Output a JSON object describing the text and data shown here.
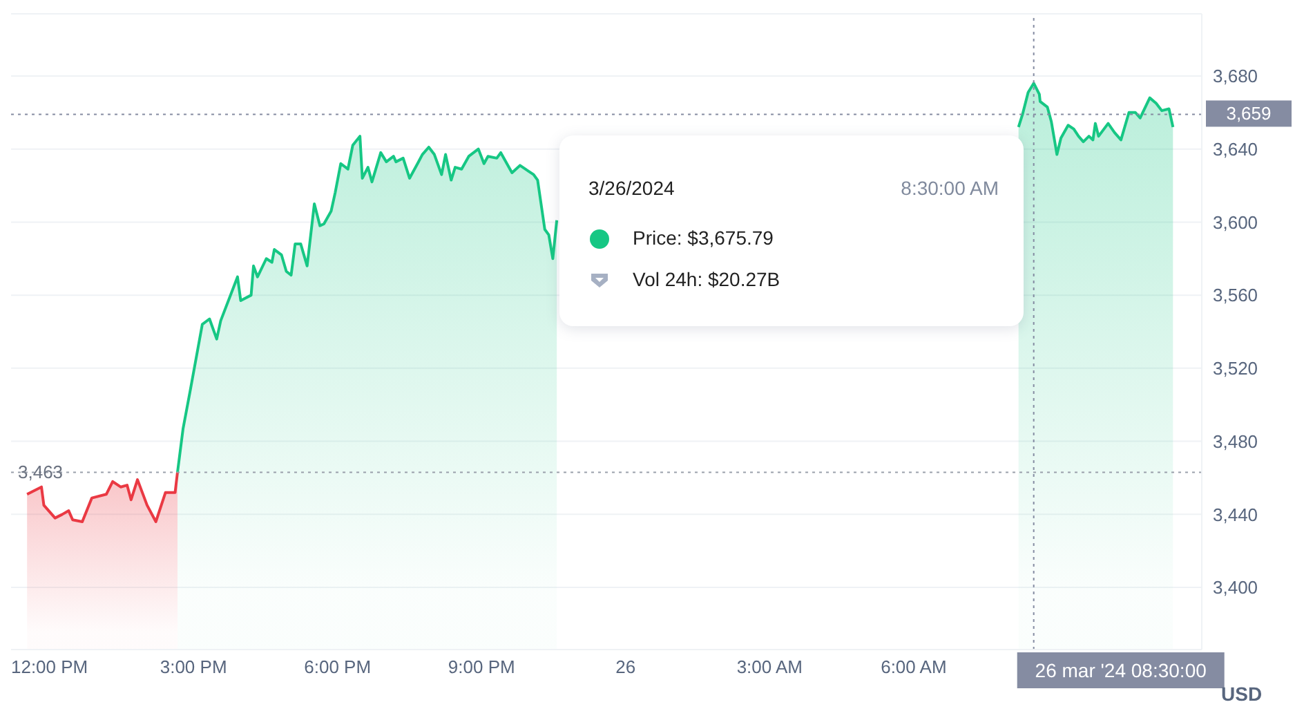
{
  "chart_data": {
    "type": "area",
    "ylabel": "USD",
    "xlim": [
      "2024-03-25T11:12",
      "2024-03-26T12:00"
    ],
    "ylim": [
      3366,
      3714
    ],
    "xticks": [
      {
        "value": "2024-03-25T12:00",
        "label": "12:00 PM"
      },
      {
        "value": "2024-03-25T15:00",
        "label": "3:00 PM"
      },
      {
        "value": "2024-03-25T18:00",
        "label": "6:00 PM"
      },
      {
        "value": "2024-03-25T21:00",
        "label": "9:00 PM"
      },
      {
        "value": "2024-03-26T00:00",
        "label": "26"
      },
      {
        "value": "2024-03-26T03:00",
        "label": "3:00 AM"
      },
      {
        "value": "2024-03-26T06:00",
        "label": "6:00 AM"
      }
    ],
    "yticks": [
      {
        "value": 3400,
        "label": "3,400"
      },
      {
        "value": 3440,
        "label": "3,440"
      },
      {
        "value": 3480,
        "label": "3,480"
      },
      {
        "value": 3520,
        "label": "3,520"
      },
      {
        "value": 3560,
        "label": "3,560"
      },
      {
        "value": 3600,
        "label": "3,600"
      },
      {
        "value": 3640,
        "label": "3,640"
      },
      {
        "value": 3680,
        "label": "3,680"
      }
    ],
    "grid": "y",
    "marker": "none",
    "line_style": "solid",
    "series": [
      {
        "color": "#ea3943",
        "x": [
          "2024-03-25T11:32",
          "2024-03-25T11:50",
          "2024-03-25T11:53",
          "2024-03-25T12:07",
          "2024-03-25T12:16",
          "2024-03-25T12:24",
          "2024-03-25T12:29",
          "2024-03-25T12:41",
          "2024-03-25T12:53",
          "2024-03-25T13:11",
          "2024-03-25T13:19",
          "2024-03-25T13:29",
          "2024-03-25T13:37",
          "2024-03-25T13:42",
          "2024-03-25T13:50",
          "2024-03-25T14:02",
          "2024-03-25T14:13",
          "2024-03-25T14:25",
          "2024-03-25T14:37",
          "2024-03-25T14:40"
        ],
        "values": [
          3451,
          3455,
          3445,
          3438,
          3440,
          3442,
          3437,
          3436,
          3449,
          3451,
          3458,
          3455,
          3456,
          3448,
          3459,
          3445,
          3436,
          3452,
          3452,
          3463
        ]
      },
      {
        "color": "#16c784",
        "x": [
          "2024-03-25T14:40",
          "2024-03-25T14:47",
          "2024-03-25T14:56",
          "2024-03-25T15:11",
          "2024-03-25T15:20",
          "2024-03-25T15:29",
          "2024-03-25T15:34",
          "2024-03-25T15:55",
          "2024-03-25T15:59",
          "2024-03-25T16:12",
          "2024-03-25T16:15",
          "2024-03-25T16:20",
          "2024-03-25T16:31",
          "2024-03-25T16:38",
          "2024-03-25T16:41",
          "2024-03-25T16:50",
          "2024-03-25T16:56",
          "2024-03-25T17:02",
          "2024-03-25T17:07",
          "2024-03-25T17:14",
          "2024-03-25T17:22",
          "2024-03-25T17:31",
          "2024-03-25T17:38",
          "2024-03-25T17:43",
          "2024-03-25T17:52",
          "2024-03-25T17:57",
          "2024-03-25T18:04",
          "2024-03-25T18:13",
          "2024-03-25T18:19",
          "2024-03-25T18:28",
          "2024-03-25T18:31",
          "2024-03-25T18:38",
          "2024-03-25T18:43",
          "2024-03-25T18:54",
          "2024-03-25T19:01",
          "2024-03-25T19:10",
          "2024-03-25T19:13",
          "2024-03-25T19:22",
          "2024-03-25T19:30",
          "2024-03-25T19:40",
          "2024-03-25T19:46",
          "2024-03-25T19:54",
          "2024-03-25T20:01",
          "2024-03-25T20:10",
          "2024-03-25T20:15",
          "2024-03-25T20:22",
          "2024-03-25T20:27",
          "2024-03-25T20:35",
          "2024-03-25T20:44",
          "2024-03-25T20:56",
          "2024-03-25T21:03",
          "2024-03-25T21:08",
          "2024-03-25T21:19",
          "2024-03-25T21:24",
          "2024-03-25T21:38",
          "2024-03-25T21:48",
          "2024-03-25T22:05",
          "2024-03-25T22:10",
          "2024-03-25T22:19",
          "2024-03-25T22:24",
          "2024-03-25T22:29",
          "2024-03-25T22:34",
          "2024-03-26T03:00",
          "2024-03-26T08:11",
          "2024-03-26T08:16",
          "2024-03-26T08:23",
          "2024-03-26T08:30",
          "2024-03-26T08:37",
          "2024-03-26T08:38",
          "2024-03-26T08:47",
          "2024-03-26T08:52",
          "2024-03-26T08:59",
          "2024-03-26T09:04",
          "2024-03-26T09:13",
          "2024-03-26T09:20",
          "2024-03-26T09:26",
          "2024-03-26T09:32",
          "2024-03-26T09:39",
          "2024-03-26T09:44",
          "2024-03-26T09:47",
          "2024-03-26T09:51",
          "2024-03-26T10:03",
          "2024-03-26T10:11",
          "2024-03-26T10:19",
          "2024-03-26T10:29",
          "2024-03-26T10:37",
          "2024-03-26T10:43",
          "2024-03-26T10:55",
          "2024-03-26T11:03",
          "2024-03-26T11:10",
          "2024-03-26T11:19",
          "2024-03-26T11:24"
        ],
        "values": [
          3463,
          3487,
          3508,
          3544,
          3547,
          3536,
          3546,
          3570,
          3557,
          3560,
          3576,
          3570,
          3580,
          3578,
          3585,
          3582,
          3573,
          3571,
          3588,
          3588,
          3576,
          3610,
          3598,
          3599,
          3606,
          3616,
          3632,
          3629,
          3642,
          3647,
          3624,
          3630,
          3622,
          3638,
          3633,
          3636,
          3633,
          3635,
          3624,
          3632,
          3637,
          3641,
          3637,
          3626,
          3637,
          3623,
          3630,
          3629,
          3636,
          3640,
          3632,
          3636,
          3635,
          3638,
          3627,
          3631,
          3626,
          3623,
          3596,
          3593,
          3580,
          3601,
          null,
          3652,
          3659,
          3671,
          3676,
          3670,
          3666,
          3663,
          3655,
          3637,
          3646,
          3653,
          3651,
          3647,
          3644,
          3647,
          3645,
          3654,
          3647,
          3654,
          3649,
          3645,
          3660,
          3660,
          3657,
          3668,
          3665,
          3661,
          3662,
          3652
        ]
      }
    ],
    "ref_lines": [
      {
        "axis": "y",
        "value": 3463,
        "label": "3,463",
        "line_style": "dotted"
      },
      {
        "axis": "y",
        "value": 3659,
        "label": "3,659",
        "color": "#858ca2",
        "line_style": "dotted"
      },
      {
        "axis": "x",
        "value": "2024-03-26T08:30",
        "label": "26 mar '24  08:30:00",
        "color": "#858ca2",
        "line_style": "dotted"
      }
    ],
    "annotations": [
      "3/26/2024",
      "8:30:00 AM",
      "Price: $3,675.79",
      "Vol 24h: $20.27B"
    ]
  }
}
